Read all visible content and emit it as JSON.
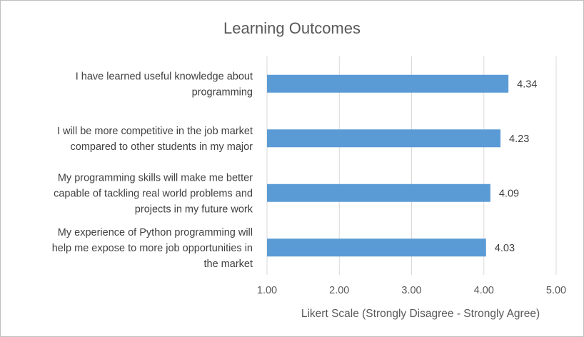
{
  "chart_data": {
    "type": "bar",
    "orientation": "horizontal",
    "title": "Learning Outcomes",
    "xlabel": "Likert Scale (Strongly Disagree - Strongly Agree)",
    "ylabel": "",
    "xlim": [
      1.0,
      5.0
    ],
    "ticks": [
      "1.00",
      "2.00",
      "3.00",
      "4.00",
      "5.00"
    ],
    "grid": "vertical",
    "legend": "none",
    "bar_color": "#5b9bd5",
    "categories": [
      [
        "I have learned useful knowledge about",
        "programming"
      ],
      [
        "I will be more competitive in the job market",
        "compared to other students in my major"
      ],
      [
        "My programming skills will make me better",
        "capable of tackling real world problems and",
        "projects in my future work"
      ],
      [
        "My experience of Python programming will",
        "help me expose to more job opportunities in",
        "the market"
      ]
    ],
    "values": [
      4.34,
      4.23,
      4.09,
      4.03
    ],
    "data_labels": [
      "4.34",
      "4.23",
      "4.09",
      "4.03"
    ]
  }
}
